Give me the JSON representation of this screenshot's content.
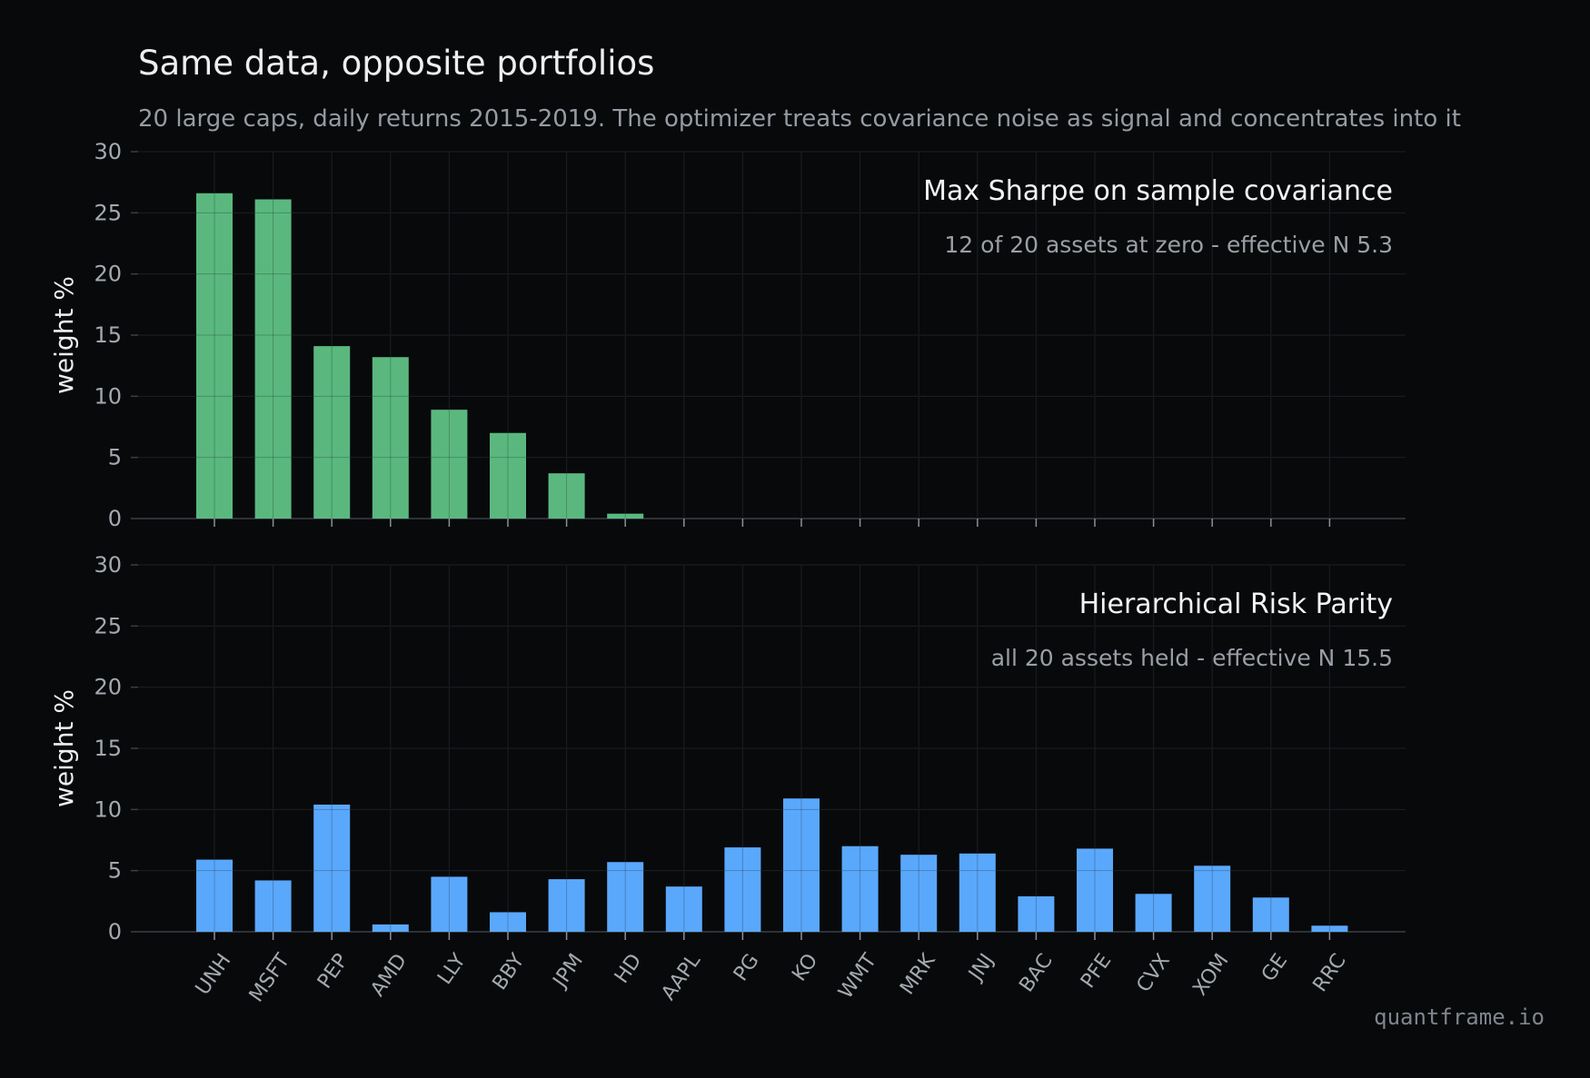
{
  "title": "Same data, opposite portfolios",
  "subtitle": "20 large caps, daily returns 2015-2019. The optimizer treats covariance noise as signal and concentrates into it",
  "watermark": "quantframe.io",
  "colors": {
    "background": "#08090b",
    "max_sharpe_bar": "#5ab87f",
    "hrp_bar": "#5aa8fb",
    "grid": "#23272d",
    "axis": "#3a3f46"
  },
  "chart_data": [
    {
      "type": "bar",
      "title": "Max Sharpe on sample covariance",
      "subtitle": "12 of 20 assets at zero - effective N 5.3",
      "ylabel": "weight %",
      "ylim": [
        0,
        30
      ],
      "yticks": [
        0,
        5,
        10,
        15,
        20,
        25,
        30
      ],
      "grid": true,
      "categories": [
        "UNH",
        "MSFT",
        "PEP",
        "AMD",
        "LLY",
        "BBY",
        "JPM",
        "HD",
        "AAPL",
        "PG",
        "KO",
        "WMT",
        "MRK",
        "JNJ",
        "BAC",
        "PFE",
        "CVX",
        "XOM",
        "GE",
        "RRC"
      ],
      "values": [
        26.6,
        26.1,
        14.1,
        13.2,
        8.9,
        7.0,
        3.7,
        0.4,
        0,
        0,
        0,
        0,
        0,
        0,
        0,
        0,
        0,
        0,
        0,
        0
      ]
    },
    {
      "type": "bar",
      "title": "Hierarchical Risk Parity",
      "subtitle": "all 20 assets held - effective N 15.5",
      "ylabel": "weight %",
      "ylim": [
        0,
        30
      ],
      "yticks": [
        0,
        5,
        10,
        15,
        20,
        25,
        30
      ],
      "grid": true,
      "categories": [
        "UNH",
        "MSFT",
        "PEP",
        "AMD",
        "LLY",
        "BBY",
        "JPM",
        "HD",
        "AAPL",
        "PG",
        "KO",
        "WMT",
        "MRK",
        "JNJ",
        "BAC",
        "PFE",
        "CVX",
        "XOM",
        "GE",
        "RRC"
      ],
      "values": [
        5.9,
        4.2,
        10.4,
        0.6,
        4.5,
        1.6,
        4.3,
        5.7,
        3.7,
        6.9,
        10.9,
        7.0,
        6.3,
        6.4,
        2.9,
        6.8,
        3.1,
        5.4,
        2.8,
        0.5
      ]
    }
  ]
}
